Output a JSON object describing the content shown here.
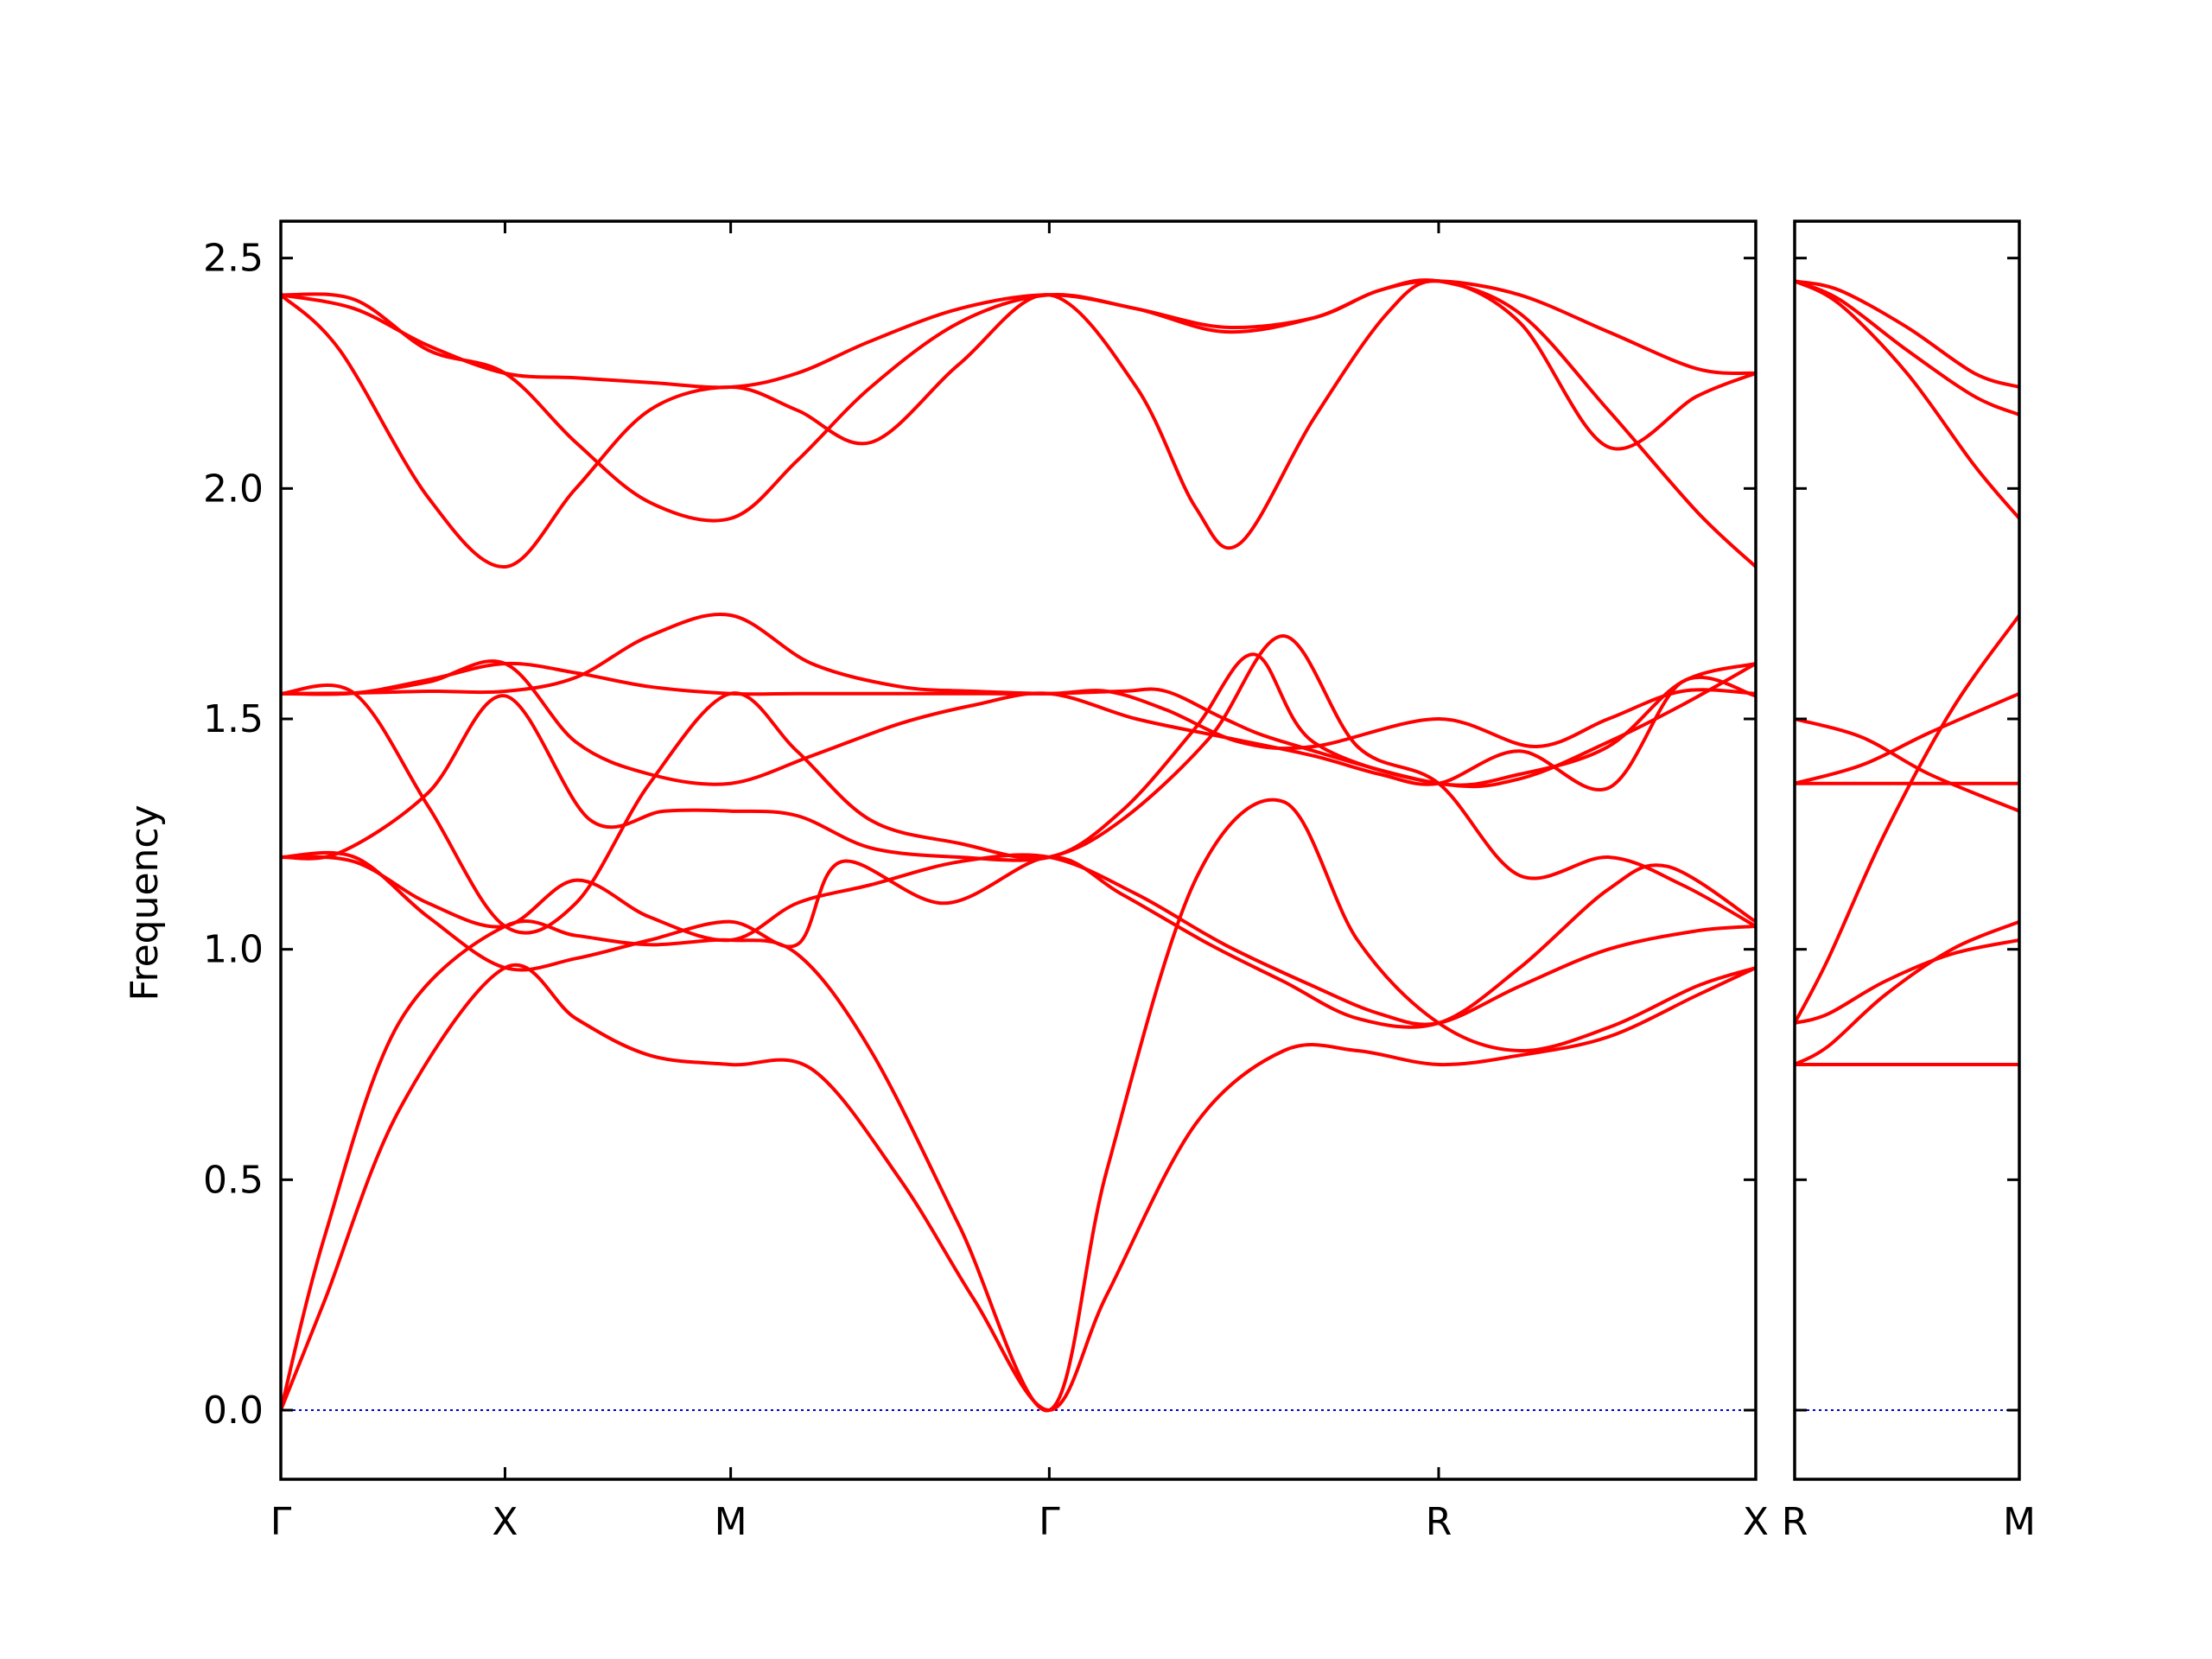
{
  "chart_data": {
    "type": "line",
    "title": "",
    "ylabel": "Frequency",
    "xlabel": "",
    "ylim": [
      -0.15,
      2.58
    ],
    "yticks": [
      0.0,
      0.5,
      1.0,
      1.5,
      2.0,
      2.5
    ],
    "ytick_labels": [
      "0.0",
      "0.5",
      "1.0",
      "1.5",
      "2.0",
      "2.5"
    ],
    "grid": false,
    "colors": {
      "bands": "#ff0000",
      "zero_line": "#0000cc",
      "axes": "#000000"
    },
    "panels": [
      {
        "xlim": [
          0,
          1
        ],
        "high_symmetry_points": [
          {
            "label": "Γ",
            "x": 0.0
          },
          {
            "label": "X",
            "x": 0.152
          },
          {
            "label": "M",
            "x": 0.305
          },
          {
            "label": "Γ",
            "x": 0.521
          },
          {
            "label": "R",
            "x": 0.785
          },
          {
            "label": "X",
            "x": 1.0
          }
        ],
        "bands": [
          {
            "x": [
              0,
              0.03,
              0.08,
              0.152,
              0.2,
              0.25,
              0.305,
              0.36,
              0.42,
              0.47,
              0.521,
              0.56,
              0.62,
              0.68,
              0.73,
              0.785,
              0.84,
              0.9,
              0.96,
              1.0
            ],
            "y": [
              0.0,
              0.24,
              0.65,
              0.96,
              0.85,
              0.77,
              0.75,
              0.74,
              0.5,
              0.24,
              0.0,
              0.25,
              0.62,
              0.78,
              0.78,
              0.75,
              0.77,
              0.81,
              0.9,
              0.96
            ]
          },
          {
            "x": [
              0,
              0.03,
              0.08,
              0.152,
              0.2,
              0.25,
              0.305,
              0.35,
              0.4,
              0.46,
              0.521,
              0.56,
              0.62,
              0.68,
              0.73,
              0.785,
              0.84,
              0.9,
              0.96,
              1.0
            ],
            "y": [
              0.0,
              0.38,
              0.84,
              1.05,
              1.03,
              1.01,
              1.02,
              0.99,
              0.78,
              0.4,
              0.0,
              0.52,
              1.15,
              1.32,
              1.02,
              0.84,
              0.78,
              0.83,
              0.92,
              0.96
            ]
          },
          {
            "x": [
              0,
              0.05,
              0.1,
              0.152,
              0.2,
              0.25,
              0.305,
              0.35,
              0.4,
              0.46,
              0.521,
              0.58,
              0.64,
              0.7,
              0.745,
              0.785,
              0.84,
              0.9,
              0.96,
              1.0
            ],
            "y": [
              1.2,
              1.19,
              1.1,
              1.05,
              1.15,
              1.07,
              1.02,
              1.1,
              1.14,
              1.19,
              1.2,
              1.12,
              1.01,
              0.92,
              0.86,
              0.84,
              0.92,
              1.0,
              1.04,
              1.05
            ]
          },
          {
            "x": [
              0,
              0.05,
              0.1,
              0.152,
              0.2,
              0.25,
              0.305,
              0.35,
              0.38,
              0.45,
              0.521,
              0.57,
              0.63,
              0.68,
              0.73,
              0.785,
              0.84,
              0.9,
              0.94,
              1.0
            ],
            "y": [
              1.2,
              1.2,
              1.07,
              0.96,
              0.98,
              1.02,
              1.06,
              1.01,
              1.19,
              1.1,
              1.2,
              1.12,
              1.01,
              0.93,
              0.85,
              0.84,
              0.96,
              1.13,
              1.18,
              1.06
            ]
          },
          {
            "x": [
              0,
              0.04,
              0.1,
              0.152,
              0.21,
              0.26,
              0.305,
              0.35,
              0.4,
              0.46,
              0.521,
              0.57,
              0.63,
              0.68,
              0.73,
              0.785,
              0.84,
              0.9,
              0.95,
              1.0
            ],
            "y": [
              1.2,
              1.21,
              1.34,
              1.55,
              1.28,
              1.3,
              1.3,
              1.29,
              1.22,
              1.2,
              1.2,
              1.28,
              1.46,
              1.68,
              1.44,
              1.36,
              1.16,
              1.2,
              1.14,
              1.05
            ]
          },
          {
            "x": [
              0,
              0.05,
              0.1,
              0.152,
              0.2,
              0.25,
              0.305,
              0.35,
              0.4,
              0.46,
              0.521,
              0.57,
              0.62,
              0.66,
              0.7,
              0.785,
              0.84,
              0.9,
              0.95,
              1.0
            ],
            "y": [
              1.555,
              1.555,
              1.31,
              1.05,
              1.1,
              1.36,
              1.555,
              1.43,
              1.28,
              1.23,
              1.2,
              1.3,
              1.48,
              1.64,
              1.45,
              1.36,
              1.38,
              1.44,
              1.58,
              1.62
            ]
          },
          {
            "x": [
              0,
              0.05,
              0.1,
              0.152,
              0.2,
              0.25,
              0.305,
              0.36,
              0.42,
              0.47,
              0.521,
              0.58,
              0.64,
              0.7,
              0.745,
              0.785,
              0.84,
              0.9,
              0.95,
              1.0
            ],
            "y": [
              1.555,
              1.556,
              1.58,
              1.62,
              1.45,
              1.38,
              1.36,
              1.42,
              1.49,
              1.53,
              1.555,
              1.5,
              1.46,
              1.42,
              1.38,
              1.36,
              1.43,
              1.35,
              1.58,
              1.55
            ]
          },
          {
            "x": [
              0,
              0.05,
              0.1,
              0.152,
              0.2,
              0.25,
              0.305,
              0.36,
              0.42,
              0.47,
              0.521,
              0.56,
              0.6,
              0.65,
              0.7,
              0.785,
              0.85,
              0.9,
              0.95,
              1.0
            ],
            "y": [
              1.555,
              1.556,
              1.56,
              1.56,
              1.59,
              1.68,
              1.725,
              1.62,
              1.57,
              1.56,
              1.555,
              1.56,
              1.52,
              1.45,
              1.44,
              1.5,
              1.44,
              1.5,
              1.56,
              1.555
            ]
          },
          {
            "x": [
              0,
              0.05,
              0.1,
              0.152,
              0.2,
              0.25,
              0.305,
              0.35,
              0.4,
              0.46,
              0.521,
              0.57,
              0.6,
              0.64,
              0.68,
              0.785,
              0.84,
              0.9,
              0.95,
              1.0
            ],
            "y": [
              1.555,
              1.556,
              1.585,
              1.62,
              1.6,
              1.57,
              1.555,
              1.555,
              1.555,
              1.555,
              1.555,
              1.56,
              1.56,
              1.5,
              1.45,
              1.36,
              1.37,
              1.45,
              1.53,
              1.62
            ]
          },
          {
            "x": [
              0,
              0.04,
              0.1,
              0.152,
              0.2,
              0.25,
              0.305,
              0.35,
              0.4,
              0.46,
              0.521,
              0.58,
              0.62,
              0.65,
              0.7,
              0.75,
              0.785,
              0.84,
              0.9,
              0.96,
              1.0
            ],
            "y": [
              2.42,
              2.3,
              1.98,
              1.83,
              2.0,
              2.17,
              2.22,
              2.17,
              2.1,
              2.27,
              2.42,
              2.22,
              1.96,
              1.88,
              2.15,
              2.38,
              2.45,
              2.36,
              2.09,
              2.2,
              2.25
            ]
          },
          {
            "x": [
              0,
              0.05,
              0.1,
              0.152,
              0.2,
              0.25,
              0.305,
              0.35,
              0.4,
              0.46,
              0.521,
              0.58,
              0.64,
              0.7,
              0.745,
              0.785,
              0.84,
              0.9,
              0.96,
              1.0
            ],
            "y": [
              2.42,
              2.41,
              2.3,
              2.25,
              2.1,
              1.97,
              1.935,
              2.06,
              2.22,
              2.36,
              2.42,
              2.39,
              2.35,
              2.37,
              2.43,
              2.45,
              2.38,
              2.17,
              1.95,
              1.83
            ]
          },
          {
            "x": [
              0,
              0.05,
              0.1,
              0.152,
              0.2,
              0.25,
              0.305,
              0.35,
              0.4,
              0.46,
              0.521,
              0.58,
              0.64,
              0.7,
              0.745,
              0.785,
              0.84,
              0.9,
              0.96,
              1.0
            ],
            "y": [
              2.42,
              2.39,
              2.31,
              2.25,
              2.24,
              2.23,
              2.22,
              2.25,
              2.32,
              2.39,
              2.42,
              2.39,
              2.34,
              2.37,
              2.43,
              2.45,
              2.42,
              2.34,
              2.26,
              2.25
            ]
          }
        ]
      },
      {
        "xlim": [
          0,
          1
        ],
        "high_symmetry_points": [
          {
            "label": "R",
            "x": 0.0
          },
          {
            "label": "M",
            "x": 1.0
          }
        ],
        "bands": [
          {
            "x": [
              0,
              1
            ],
            "y": [
              0.75,
              0.75
            ]
          },
          {
            "x": [
              0,
              0.15,
              0.4,
              0.7,
              1.0
            ],
            "y": [
              0.75,
              0.79,
              0.9,
              1.0,
              1.06
            ]
          },
          {
            "x": [
              0,
              0.15,
              0.4,
              0.7,
              1.0
            ],
            "y": [
              0.84,
              0.86,
              0.93,
              0.99,
              1.02
            ]
          },
          {
            "x": [
              0,
              0.15,
              0.4,
              0.7,
              1.0
            ],
            "y": [
              0.84,
              0.98,
              1.25,
              1.52,
              1.725
            ]
          },
          {
            "x": [
              0,
              1
            ],
            "y": [
              1.36,
              1.36
            ]
          },
          {
            "x": [
              0,
              0.3,
              0.6,
              1.0
            ],
            "y": [
              1.5,
              1.46,
              1.38,
              1.3
            ]
          },
          {
            "x": [
              0,
              0.3,
              0.6,
              1.0
            ],
            "y": [
              1.36,
              1.4,
              1.47,
              1.555
            ]
          },
          {
            "x": [
              0,
              0.2,
              0.5,
              0.8,
              1.0
            ],
            "y": [
              2.45,
              2.4,
              2.25,
              2.05,
              1.935
            ]
          },
          {
            "x": [
              0,
              0.2,
              0.5,
              0.8,
              1.0
            ],
            "y": [
              2.45,
              2.43,
              2.35,
              2.25,
              2.22
            ]
          },
          {
            "x": [
              0,
              0.2,
              0.5,
              0.8,
              1.0
            ],
            "y": [
              2.45,
              2.41,
              2.3,
              2.2,
              2.16
            ]
          }
        ]
      }
    ]
  }
}
